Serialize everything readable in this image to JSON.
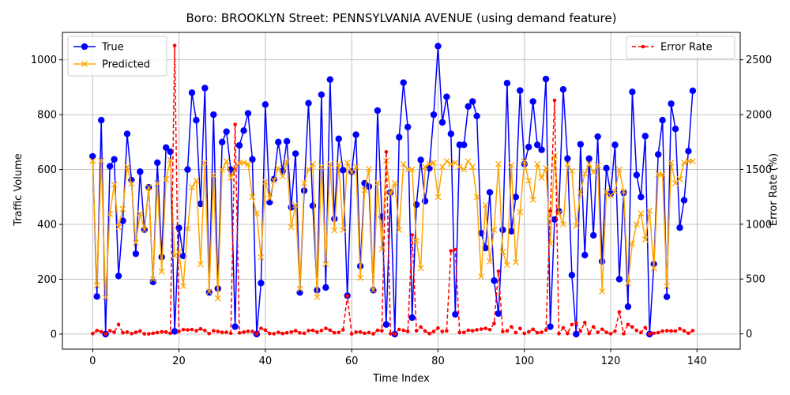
{
  "chart_data": {
    "type": "line",
    "title": "Boro: BROOKLYN Street: PENNSYLVANIA AVENUE (using demand feature)",
    "xlabel": "Time Index",
    "ylabel_left": "Traffic Volume",
    "ylabel_right": "Error Rate (%)",
    "xlim": [
      -7,
      150
    ],
    "ylim_left": [
      -55,
      1100
    ],
    "ylim_right": [
      -140,
      2750
    ],
    "x_ticks": [
      0,
      20,
      40,
      60,
      80,
      100,
      120,
      140
    ],
    "y_ticks_left": [
      0,
      200,
      400,
      600,
      800,
      1000
    ],
    "y_ticks_right": [
      0,
      500,
      1000,
      1500,
      2000,
      2500
    ],
    "grid": true,
    "legend_left_position": "upper-left",
    "legend_right_position": "upper-right",
    "series": [
      {
        "name": "True",
        "axis": "left",
        "color": "#0000ff",
        "marker": "circle",
        "values": [
          648,
          137,
          780,
          0,
          612,
          637,
          212,
          413,
          730,
          561,
          293,
          592,
          381,
          535,
          190,
          625,
          281,
          680,
          665,
          10,
          387,
          285,
          600,
          880,
          780,
          475,
          897,
          152,
          800,
          166,
          700,
          738,
          600,
          27,
          688,
          742,
          805,
          637,
          0,
          186,
          837,
          481,
          565,
          700,
          595,
          703,
          462,
          658,
          152,
          523,
          842,
          468,
          160,
          873,
          170,
          928,
          420,
          712,
          598,
          140,
          592,
          727,
          248,
          550,
          538,
          160,
          815,
          428,
          35,
          517,
          0,
          718,
          917,
          755,
          60,
          472,
          635,
          485,
          605,
          800,
          1050,
          772,
          865,
          730,
          72,
          690,
          690,
          830,
          848,
          795,
          368,
          314,
          517,
          195,
          75,
          380,
          915,
          375,
          500,
          888,
          620,
          682,
          848,
          690,
          672,
          930,
          27,
          418,
          448,
          892,
          640,
          215,
          0,
          692,
          288,
          640,
          360,
          720,
          265,
          605,
          512,
          690,
          200,
          515,
          100,
          883,
          580,
          500,
          722,
          0,
          255,
          655,
          780,
          136,
          840,
          748,
          388,
          488,
          667,
          887
        ]
      },
      {
        "name": "Predicted",
        "axis": "left",
        "color": "#ffa500",
        "marker": "x",
        "values": [
          632,
          178,
          632,
          134,
          438,
          545,
          390,
          456,
          610,
          548,
          333,
          440,
          380,
          535,
          200,
          550,
          228,
          565,
          635,
          285,
          300,
          175,
          385,
          535,
          560,
          255,
          625,
          155,
          580,
          130,
          600,
          630,
          570,
          600,
          625,
          625,
          620,
          500,
          440,
          280,
          555,
          495,
          560,
          605,
          575,
          630,
          390,
          470,
          165,
          550,
          600,
          620,
          135,
          610,
          255,
          620,
          378,
          620,
          380,
          625,
          590,
          610,
          205,
          525,
          602,
          160,
          552,
          310,
          632,
          510,
          550,
          380,
          620,
          600,
          600,
          340,
          240,
          610,
          620,
          625,
          500,
          610,
          630,
          620,
          625,
          610,
          600,
          630,
          610,
          500,
          210,
          470,
          265,
          380,
          620,
          300,
          252,
          616,
          262,
          445,
          630,
          560,
          490,
          620,
          570,
          605,
          330,
          650,
          440,
          400,
          620,
          595,
          395,
          517,
          585,
          620,
          590,
          615,
          155,
          520,
          505,
          520,
          600,
          520,
          185,
          330,
          400,
          440,
          345,
          450,
          240,
          584,
          582,
          175,
          625,
          550,
          565,
          625,
          630,
          630
        ]
      },
      {
        "name": "Error Rate",
        "axis": "right",
        "color": "#ff0000",
        "style": "dashed",
        "marker": "dot",
        "values": [
          2,
          30,
          19,
          0,
          28,
          15,
          85,
          10,
          16,
          2,
          14,
          26,
          0,
          0,
          5,
          12,
          19,
          17,
          5,
          2630,
          22,
          38,
          36,
          39,
          28,
          46,
          30,
          2,
          28,
          22,
          14,
          15,
          5,
          1910,
          9,
          16,
          23,
          22,
          0,
          50,
          34,
          3,
          1,
          14,
          3,
          10,
          16,
          29,
          9,
          5,
          29,
          32,
          16,
          30,
          50,
          33,
          10,
          13,
          37,
          346,
          0,
          16,
          17,
          5,
          12,
          0,
          32,
          28,
          1660,
          1,
          0,
          40,
          32,
          21,
          902,
          28,
          62,
          26,
          2,
          22,
          52,
          21,
          27,
          757,
          768,
          12,
          13,
          32,
          28,
          37,
          43,
          50,
          38,
          95,
          571,
          21,
          27,
          64,
          11,
          49,
          3,
          18,
          42,
          10,
          15,
          35,
          1120,
          2130,
          2,
          55,
          3,
          84,
          100,
          25,
          103,
          3,
          64,
          14,
          42,
          14,
          1,
          25,
          200,
          1,
          85,
          62,
          31,
          12,
          56,
          0,
          6,
          11,
          25,
          28,
          26,
          26,
          46,
          28,
          5,
          29
        ]
      }
    ]
  }
}
